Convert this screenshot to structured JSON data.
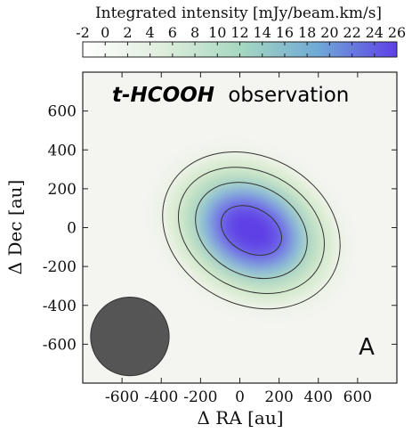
{
  "chart_data": {
    "type": "heatmap",
    "title": "t-HCOOH observation",
    "title_bold": "t-HCOOH",
    "title_rest": "observation",
    "panel_label": "A",
    "xlabel": "Δ RA [au]",
    "ylabel": "Δ Dec [au]",
    "xlim": [
      -800,
      800
    ],
    "ylim": [
      -800,
      800
    ],
    "xticks": [
      -600,
      -400,
      -200,
      0,
      200,
      400,
      600
    ],
    "yticks": [
      600,
      400,
      200,
      0,
      -200,
      -400,
      -600
    ],
    "xtick_labels": [
      "-600",
      "-400",
      "-200",
      "0",
      "200",
      "400",
      "600"
    ],
    "ytick_labels": [
      "600",
      "400",
      "200",
      "0",
      "-200",
      "-400",
      "-600"
    ],
    "colorbar": {
      "label": "Integrated intensity [mJy/beam.km/s]",
      "range": [
        -2,
        26
      ],
      "ticks": [
        -2,
        0,
        2,
        4,
        6,
        8,
        10,
        12,
        14,
        16,
        18,
        20,
        22,
        24,
        26
      ],
      "tick_labels": [
        "-2",
        "0",
        "2",
        "4",
        "6",
        "8",
        "10",
        "12",
        "14",
        "16",
        "18",
        "20",
        "22",
        "24",
        "26"
      ],
      "colors": [
        "#ffffff",
        "#dfeedd",
        "#a7d8c0",
        "#6fa9d6",
        "#5e3fe6"
      ]
    },
    "emission_peak": {
      "ra": 30,
      "dec": -30,
      "value": 26
    },
    "contour_levels_fraction_of_peak": [
      0.15,
      0.3,
      0.5,
      0.75
    ],
    "beam": {
      "center_ra": -560,
      "center_dec": -560,
      "diameter_au": 400,
      "color": "#555555"
    }
  }
}
